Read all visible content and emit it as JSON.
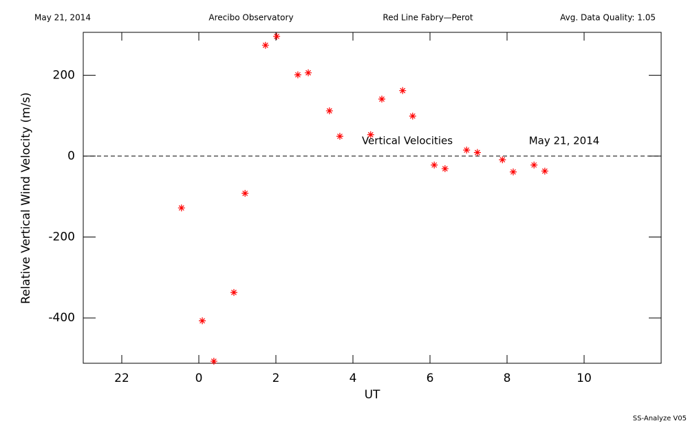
{
  "chart_data": {
    "type": "scatter",
    "header": [
      "May 21, 2014",
      "Arecibo Observatory",
      "Red Line Fabry—Perot",
      "Avg. Data Quality: 1.05"
    ],
    "xlabel": "UT",
    "ylabel": "Relative Vertical Wind Velocity (m/s)",
    "annotations": [
      "Vertical Velocities",
      "May 21, 2014"
    ],
    "footer": "SS-Analyze V05",
    "xlim": [
      -3,
      12
    ],
    "ylim": [
      -512,
      306
    ],
    "xticks": [
      {
        "value": -2,
        "label": "22"
      },
      0,
      2,
      4,
      6,
      8,
      10
    ],
    "yticks": [
      -400,
      -200,
      0,
      200
    ],
    "reference_line": 0,
    "series": [
      {
        "name": "Vertical Velocities",
        "color": "#ff0000",
        "x": [
          -0.45,
          0.09,
          0.39,
          0.91,
          1.2,
          1.73,
          2.02,
          2.57,
          2.84,
          3.39,
          3.66,
          4.46,
          4.75,
          5.29,
          5.55,
          6.11,
          6.39,
          6.95,
          7.23,
          7.88,
          8.16,
          8.7,
          8.98
        ],
        "values": [
          -128,
          -407,
          -507,
          -337,
          -92,
          274,
          296,
          201,
          206,
          112,
          49,
          53,
          141,
          162,
          99,
          -22,
          -31,
          15,
          9,
          -9,
          -39,
          -22,
          -37
        ]
      }
    ]
  }
}
